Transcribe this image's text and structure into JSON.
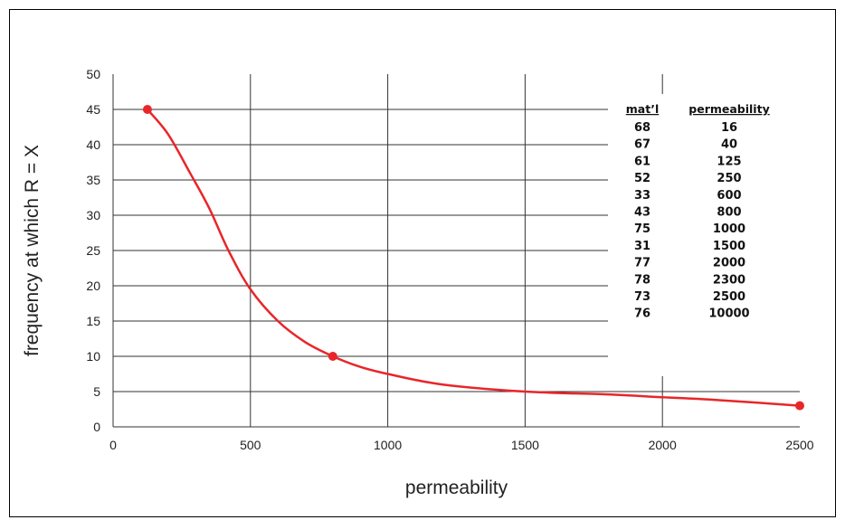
{
  "chart_data": {
    "type": "line",
    "title": "",
    "xlabel": "permeability",
    "ylabel": "frequency at which R = X",
    "xlim": [
      0,
      2500
    ],
    "ylim": [
      0,
      50
    ],
    "x_ticks": [
      0,
      500,
      1000,
      1500,
      2000,
      2500
    ],
    "y_ticks": [
      0,
      5,
      10,
      15,
      20,
      25,
      30,
      35,
      40,
      45,
      50
    ],
    "grid": {
      "vertical": [
        500,
        1000,
        1500,
        2000
      ],
      "horizontal": [
        5,
        10,
        15,
        20,
        25,
        30,
        35,
        40,
        45
      ]
    },
    "series": [
      {
        "color": "#e8262a",
        "x": [
          125,
          200,
          280,
          350,
          420,
          500,
          600,
          700,
          800,
          900,
          1000,
          1200,
          1500,
          1800,
          2000,
          2200,
          2500
        ],
        "y": [
          45,
          41.5,
          36,
          31,
          25,
          19.5,
          15,
          12,
          10,
          8.5,
          7.5,
          6,
          5,
          4.6,
          4.2,
          3.8,
          3
        ],
        "markers": [
          {
            "x": 125,
            "y": 45
          },
          {
            "x": 800,
            "y": 10
          },
          {
            "x": 2500,
            "y": 3
          }
        ]
      }
    ],
    "table": {
      "headers": [
        "mat’l",
        "permeability"
      ],
      "rows": [
        [
          "68",
          "16"
        ],
        [
          "67",
          "40"
        ],
        [
          "61",
          "125"
        ],
        [
          "52",
          "250"
        ],
        [
          "33",
          "600"
        ],
        [
          "43",
          "800"
        ],
        [
          "75",
          "1000"
        ],
        [
          "31",
          "1500"
        ],
        [
          "77",
          "2000"
        ],
        [
          "78",
          "2300"
        ],
        [
          "73",
          "2500"
        ],
        [
          "76",
          "10000"
        ]
      ]
    }
  }
}
